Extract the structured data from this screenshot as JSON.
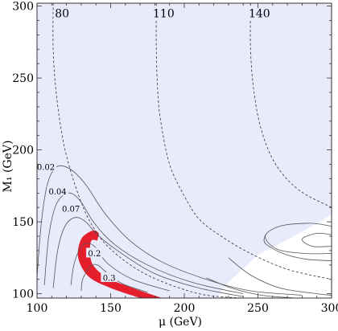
{
  "chart_data": {
    "type": "contour",
    "xlabel": "μ (GeV)",
    "ylabel": "M₁ (GeV)",
    "xlim": [
      100,
      300
    ],
    "ylim": [
      97,
      302
    ],
    "xticks": [
      100,
      150,
      200,
      250,
      300
    ],
    "yticks": [
      100,
      150,
      200,
      250,
      300
    ],
    "colors": {
      "shaded": "#e8ebfb",
      "band": "#e41e2b",
      "frame": "#333333",
      "line": "#555555"
    },
    "shaded_region": [
      [
        100,
        97
      ],
      [
        100,
        302
      ],
      [
        300,
        302
      ],
      [
        300,
        155
      ],
      [
        280,
        143
      ],
      [
        250,
        127
      ],
      [
        228,
        106
      ],
      [
        222,
        97
      ]
    ],
    "solid_contours": [
      {
        "label": "0.02",
        "label_at": [
          106,
          188
        ],
        "points": [
          [
            100,
            112
          ],
          [
            103,
            150
          ],
          [
            107,
            176
          ],
          [
            113,
            188
          ],
          [
            122,
            187
          ],
          [
            133,
            176
          ],
          [
            146,
            156
          ],
          [
            163,
            137
          ],
          [
            185,
            122
          ],
          [
            215,
            110
          ],
          [
            245,
            102
          ],
          [
            280,
            99
          ]
        ]
      },
      {
        "label": "0.04",
        "label_at": [
          114,
          171
        ],
        "points": [
          [
            105,
            106
          ],
          [
            108,
            140
          ],
          [
            113,
            162
          ],
          [
            121,
            170
          ],
          [
            129,
            165
          ],
          [
            139,
            149
          ],
          [
            153,
            134
          ],
          [
            175,
            120
          ],
          [
            205,
            108
          ],
          [
            240,
            100
          ]
        ]
      },
      {
        "label": "0.07",
        "label_at": [
          123,
          159
        ],
        "points": [
          [
            111,
            104
          ],
          [
            114,
            130
          ],
          [
            119,
            147
          ],
          [
            126,
            153
          ],
          [
            133,
            150
          ],
          [
            141,
            141
          ],
          [
            156,
            129
          ],
          [
            180,
            114
          ],
          [
            210,
            104
          ],
          [
            240,
            98
          ]
        ]
      },
      {
        "label": "0.2",
        "label_at": [
          139,
          128
        ],
        "points": [
          [
            123,
            106
          ],
          [
            125,
            120
          ],
          [
            129,
            131
          ],
          [
            133,
            135
          ],
          [
            139,
            133
          ],
          [
            148,
            121
          ],
          [
            165,
            110
          ],
          [
            190,
            102
          ]
        ]
      },
      {
        "label": "0.3",
        "label_at": [
          149,
          111
        ],
        "points": [
          [
            130,
            102
          ],
          [
            131,
            110
          ],
          [
            136,
            119
          ],
          [
            141,
            120
          ],
          [
            147,
            115
          ],
          [
            158,
            107
          ],
          [
            175,
            101
          ]
        ]
      },
      {
        "label": "",
        "points": [
          [
            215,
            111
          ],
          [
            232,
            104
          ],
          [
            252,
            99
          ],
          [
            275,
            97
          ]
        ]
      },
      {
        "label": "",
        "points": [
          [
            230,
            125
          ],
          [
            245,
            113
          ],
          [
            265,
            104
          ],
          [
            290,
            100
          ],
          [
            300,
            99
          ]
        ]
      },
      {
        "label": "",
        "points": [
          [
            300,
            147
          ],
          [
            285,
            149
          ],
          [
            265,
            147
          ],
          [
            255,
            140
          ],
          [
            263,
            131
          ],
          [
            282,
            128
          ],
          [
            300,
            128
          ]
        ]
      },
      {
        "label": "",
        "points": [
          [
            300,
            141
          ],
          [
            290,
            142
          ],
          [
            280,
            138
          ],
          [
            287,
            133
          ],
          [
            300,
            133
          ]
        ]
      },
      {
        "label": "",
        "points": [
          [
            255,
            141
          ],
          [
            255,
            135
          ],
          [
            267,
            128
          ],
          [
            283,
            124
          ],
          [
            300,
            123
          ]
        ]
      }
    ],
    "red_band": {
      "outer": [
        [
          170,
          97
        ],
        [
          150,
          104
        ],
        [
          135,
          112
        ],
        [
          128,
          125
        ],
        [
          130,
          138
        ],
        [
          138,
          144
        ],
        [
          142,
          142
        ]
      ],
      "inner": [
        [
          141,
          137
        ],
        [
          137,
          137
        ],
        [
          136,
          130
        ],
        [
          138,
          120
        ],
        [
          148,
          111
        ],
        [
          165,
          104
        ],
        [
          185,
          97
        ]
      ]
    },
    "dashed_contours": [
      {
        "label": "80",
        "label_at": [
          117,
          295
        ],
        "points": [
          [
            111,
            302
          ],
          [
            111,
            270
          ],
          [
            113,
            240
          ],
          [
            118,
            205
          ],
          [
            126,
            175
          ],
          [
            136,
            150
          ],
          [
            150,
            131
          ],
          [
            175,
            113
          ],
          [
            210,
            100
          ],
          [
            240,
            97
          ]
        ]
      },
      {
        "label": "110",
        "label_at": [
          186,
          295
        ],
        "points": [
          [
            181,
            302
          ],
          [
            181,
            270
          ],
          [
            182,
            240
          ],
          [
            184,
            220
          ],
          [
            190,
            190
          ],
          [
            200,
            168
          ],
          [
            210,
            152
          ],
          [
            225,
            140
          ],
          [
            245,
            128
          ],
          [
            270,
            117
          ],
          [
            300,
            110
          ]
        ]
      },
      {
        "label": "140",
        "label_at": [
          251,
          295
        ],
        "points": [
          [
            245,
            302
          ],
          [
            245,
            270
          ],
          [
            247,
            243
          ],
          [
            252,
            215
          ],
          [
            262,
            190
          ],
          [
            278,
            172
          ],
          [
            300,
            160
          ]
        ]
      }
    ]
  }
}
